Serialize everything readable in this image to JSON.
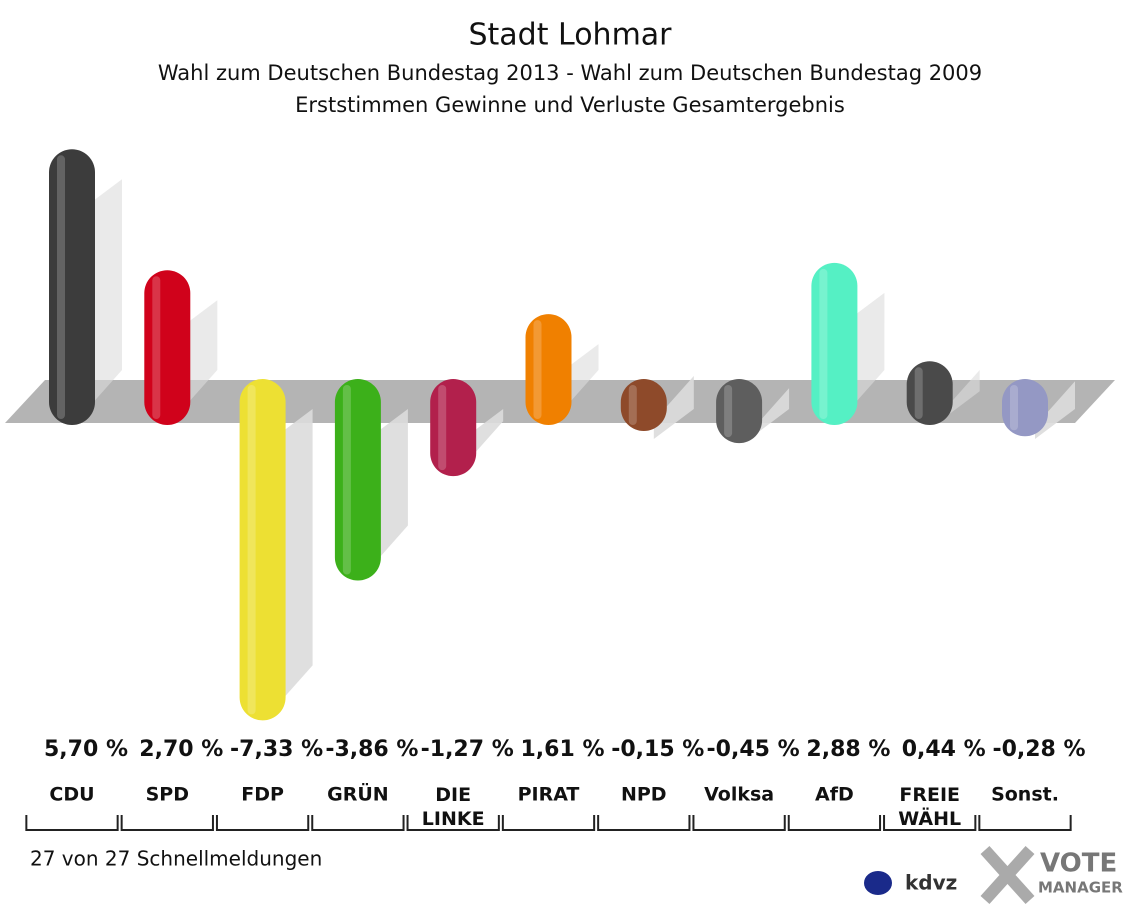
{
  "chart_data": {
    "type": "bar",
    "title": "Stadt Lohmar",
    "subtitle": [
      "Wahl zum Deutschen Bundestag 2013 - Wahl zum Deutschen Bundestag 2009",
      "Erststimmen Gewinne und Verluste Gesamtergebnis"
    ],
    "categories": [
      "CDU",
      "SPD",
      "FDP",
      "GRÜN",
      "DIE LINKE",
      "PIRAT",
      "NPD",
      "Volksa",
      "AfD",
      "FREIE WÄHL",
      "Sonst."
    ],
    "values": [
      5.7,
      2.7,
      -7.33,
      -3.86,
      -1.27,
      1.61,
      -0.15,
      -0.45,
      2.88,
      0.44,
      -0.28
    ],
    "value_labels": [
      "5,70 %",
      "2,70 %",
      "-7,33 %",
      "-3,86 %",
      "-1,27 %",
      "1,61 %",
      "-0,15 %",
      "-0,45 %",
      "2,88 %",
      "0,44 %",
      "-0,28 %"
    ],
    "colors": [
      "#3c3c3c",
      "#d0021b",
      "#ede033",
      "#3cb01a",
      "#b2204c",
      "#f08000",
      "#8e4a2a",
      "#5e5e5e",
      "#55f0c4",
      "#4a4a4a",
      "#9498c4"
    ],
    "footnote": "27 von 27 Schnellmeldungen",
    "logos": [
      "kdvz",
      "VOTE",
      "MANAGER"
    ]
  }
}
